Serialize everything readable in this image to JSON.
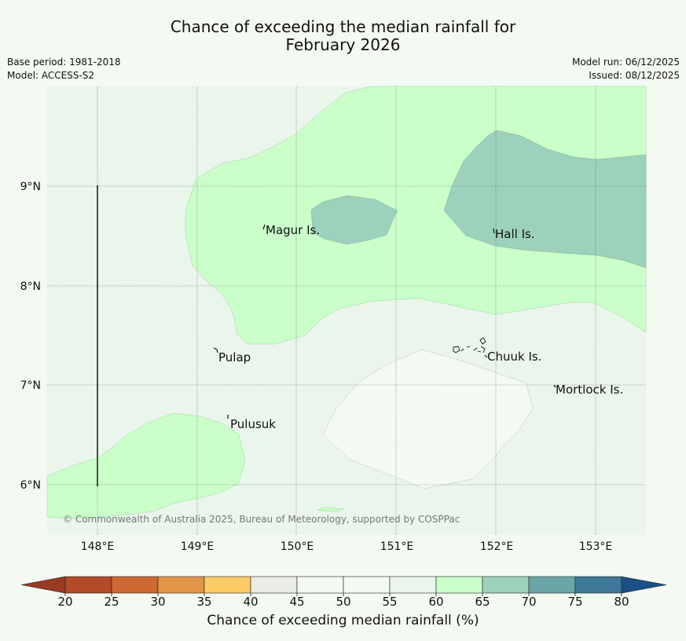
{
  "title": {
    "line1": "Chance of exceeding the median rainfall for",
    "line2": "February 2026"
  },
  "meta": {
    "base_period": "Base period: 1981-2018",
    "model": "Model: ACCESS-S2",
    "model_run": "Model run: 06/12/2025",
    "issued": "Issued: 08/12/2025"
  },
  "map": {
    "lat_labels": [
      "9°N",
      "8°N",
      "7°N",
      "6°N"
    ],
    "lon_labels": [
      "148°E",
      "149°E",
      "150°E",
      "151°E",
      "152°E",
      "153°E"
    ],
    "places": [
      "Magur Is.",
      "Hall Is.",
      "Pulap",
      "Chuuk Is.",
      "Mortlock Is.",
      "Pulusuk"
    ],
    "copyright": "© Commonwealth of Australia 2025, Bureau of Meteorology, supported by COSPPac"
  },
  "legend": {
    "title": "Chance of exceeding median rainfall (%)",
    "ticks": [
      "20",
      "25",
      "30",
      "35",
      "40",
      "45",
      "50",
      "55",
      "60",
      "65",
      "70",
      "75",
      "80"
    ],
    "colors": [
      "#b34a28",
      "#cf6832",
      "#e29648",
      "#fccb65",
      "#e9ebe5",
      "#f4f9f3",
      "#f4f9f3",
      "#eaf5eb",
      "#caffca",
      "#9cd2bb",
      "#6aa5a7",
      "#3e7898"
    ],
    "under_color": "#9a3a20",
    "over_color": "#1b4f86"
  }
}
